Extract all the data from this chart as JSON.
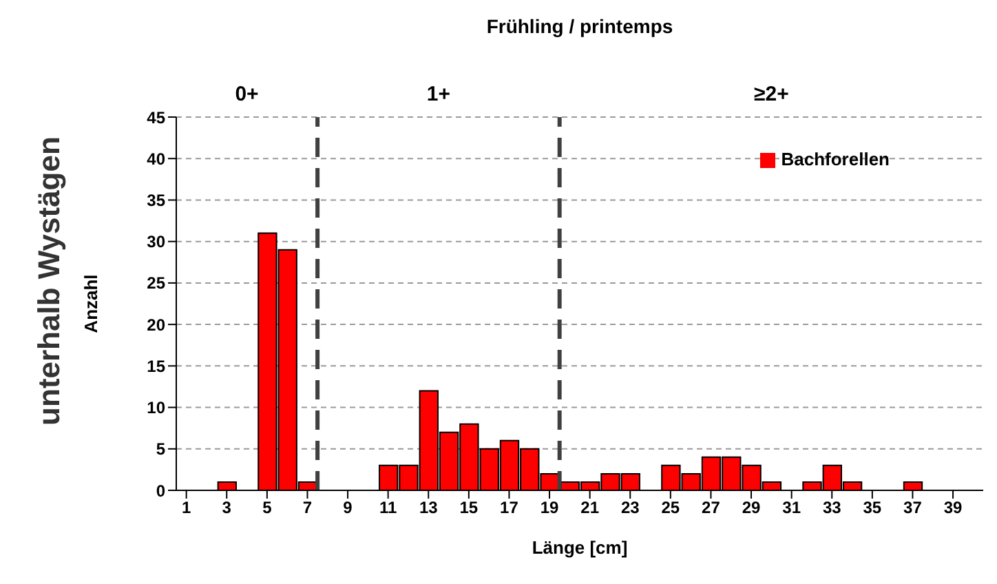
{
  "chart_data": {
    "type": "bar",
    "title": "Frühling / printemps",
    "xlabel": "Länge [cm]",
    "ylabel": "Anzahl",
    "annotations": [
      "unterhalb Wystägen",
      "0+",
      "1+",
      "≥2+"
    ],
    "x": [
      1,
      2,
      3,
      4,
      5,
      6,
      7,
      8,
      9,
      10,
      11,
      12,
      13,
      14,
      15,
      16,
      17,
      18,
      19,
      20,
      21,
      22,
      23,
      24,
      25,
      26,
      27,
      28,
      29,
      30,
      31,
      32,
      33,
      34,
      35,
      36,
      37,
      38,
      39,
      40
    ],
    "series": [
      {
        "name": "Bachforellen",
        "color": "#ff0000",
        "values": [
          0,
          0,
          1,
          0,
          31,
          29,
          1,
          0,
          0,
          0,
          3,
          3,
          12,
          7,
          8,
          5,
          6,
          5,
          2,
          1,
          1,
          2,
          2,
          0,
          3,
          2,
          4,
          4,
          3,
          1,
          0,
          1,
          3,
          1,
          0,
          0,
          1,
          0,
          0,
          0
        ]
      }
    ],
    "xlim": [
      0.5,
      40.5
    ],
    "xticks": [
      1,
      3,
      5,
      7,
      9,
      11,
      13,
      15,
      17,
      19,
      21,
      23,
      25,
      27,
      29,
      31,
      33,
      35,
      37,
      39
    ],
    "ylim": [
      0,
      45
    ],
    "yticks": [
      0,
      5,
      10,
      15,
      20,
      25,
      30,
      35,
      40,
      45
    ],
    "ref_lines": [
      {
        "axis": "x",
        "value": 7.5,
        "color": "#404040",
        "line_style": "dashed"
      },
      {
        "axis": "x",
        "value": 19.5,
        "color": "#404040",
        "line_style": "dashed"
      }
    ],
    "grid": "y",
    "legend": "top right"
  }
}
